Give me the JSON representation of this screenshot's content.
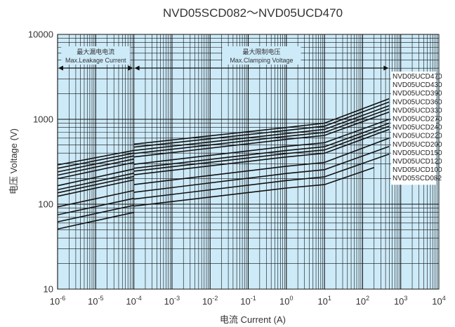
{
  "chart_data": {
    "type": "line",
    "title": "NVD05SCD082～NVD05UCD470",
    "xlabel": "电流 Current (A)",
    "ylabel": "电压 Voltage (V)",
    "x_scale": "log",
    "y_scale": "log",
    "xlim": [
      1e-06,
      10000
    ],
    "ylim": [
      10,
      10000
    ],
    "grid": true,
    "x_ticks": [
      {
        "base": "10",
        "exp": "-6"
      },
      {
        "base": "10",
        "exp": "-5"
      },
      {
        "base": "10",
        "exp": "-4"
      },
      {
        "base": "10",
        "exp": "-3"
      },
      {
        "base": "10",
        "exp": "-2"
      },
      {
        "base": "10",
        "exp": "-1"
      },
      {
        "base": "10",
        "exp": "0"
      },
      {
        "base": "10",
        "exp": "1"
      },
      {
        "base": "10",
        "exp": "2"
      },
      {
        "base": "10",
        "exp": "3"
      },
      {
        "base": "10",
        "exp": "4"
      }
    ],
    "y_ticks": [
      "10",
      "100",
      "1000",
      "10000"
    ],
    "regions": [
      {
        "label_cn": "最大漏电电流",
        "label_en": "Max.Leakage Current",
        "x_range": [
          1e-06,
          0.0001
        ]
      },
      {
        "label_cn": "最大限制电压",
        "label_en": "Max.Clamping Voltage",
        "x_range": [
          0.0001,
          500
        ]
      }
    ],
    "legend_position": "right",
    "series": [
      {
        "name": "NVD05UCD470",
        "leak": [
          [
            1e-06,
            290
          ],
          [
            0.0001,
            430
          ]
        ],
        "clamp": [
          [
            0.0001,
            510
          ],
          [
            1,
            800
          ],
          [
            10,
            900
          ],
          [
            500,
            1750
          ]
        ]
      },
      {
        "name": "NVD05UCD430",
        "leak": [
          [
            1e-06,
            265
          ],
          [
            0.0001,
            400
          ]
        ],
        "clamp": [
          [
            0.0001,
            470
          ],
          [
            1,
            740
          ],
          [
            10,
            830
          ],
          [
            500,
            1600
          ]
        ]
      },
      {
        "name": "NVD05UCD390",
        "leak": [
          [
            1e-06,
            240
          ],
          [
            0.0001,
            370
          ]
        ],
        "clamp": [
          [
            0.0001,
            430
          ],
          [
            1,
            680
          ],
          [
            10,
            760
          ],
          [
            500,
            1450
          ]
        ]
      },
      {
        "name": "NVD05UCD360",
        "leak": [
          [
            1e-06,
            220
          ],
          [
            0.0001,
            340
          ]
        ],
        "clamp": [
          [
            0.0001,
            395
          ],
          [
            1,
            630
          ],
          [
            10,
            700
          ],
          [
            500,
            1330
          ]
        ]
      },
      {
        "name": "NVD05UCD330",
        "leak": [
          [
            1e-06,
            200
          ],
          [
            0.0001,
            310
          ]
        ],
        "clamp": [
          [
            0.0001,
            360
          ],
          [
            1,
            580
          ],
          [
            10,
            645
          ],
          [
            500,
            1220
          ]
        ]
      },
      {
        "name": "NVD05UCD270",
        "leak": [
          [
            1e-06,
            165
          ],
          [
            0.0001,
            260
          ]
        ],
        "clamp": [
          [
            0.0001,
            295
          ],
          [
            1,
            480
          ],
          [
            10,
            530
          ],
          [
            500,
            1000
          ]
        ]
      },
      {
        "name": "NVD05UCD240",
        "leak": [
          [
            1e-06,
            148
          ],
          [
            0.0001,
            232
          ]
        ],
        "clamp": [
          [
            0.0001,
            265
          ],
          [
            1,
            430
          ],
          [
            10,
            475
          ],
          [
            500,
            900
          ]
        ]
      },
      {
        "name": "NVD05UCD220",
        "leak": [
          [
            1e-06,
            136
          ],
          [
            0.0001,
            212
          ]
        ],
        "clamp": [
          [
            0.0001,
            245
          ],
          [
            1,
            395
          ],
          [
            10,
            435
          ],
          [
            500,
            830
          ]
        ]
      },
      {
        "name": "NVD05UCD200",
        "leak": [
          [
            1e-06,
            124
          ],
          [
            0.0001,
            193
          ]
        ],
        "clamp": [
          [
            0.0001,
            222
          ],
          [
            1,
            360
          ],
          [
            10,
            398
          ],
          [
            500,
            760
          ]
        ]
      },
      {
        "name": "NVD05UCD150",
        "leak": [
          [
            1e-06,
            93
          ],
          [
            0.0001,
            145
          ]
        ],
        "clamp": [
          [
            0.0001,
            170
          ],
          [
            1,
            280
          ],
          [
            10,
            310
          ],
          [
            500,
            600
          ]
        ]
      },
      {
        "name": "NVD05UCD120",
        "leak": [
          [
            1e-06,
            75
          ],
          [
            0.0001,
            117
          ]
        ],
        "clamp": [
          [
            0.0001,
            138
          ],
          [
            1,
            230
          ],
          [
            10,
            255
          ],
          [
            500,
            480
          ]
        ]
      },
      {
        "name": "NVD05UCD100",
        "leak": [
          [
            1e-06,
            62
          ],
          [
            0.0001,
            97
          ]
        ],
        "clamp": [
          [
            0.0001,
            115
          ],
          [
            1,
            190
          ],
          [
            10,
            210
          ],
          [
            500,
            390
          ]
        ]
      },
      {
        "name": "NVD05SCD082",
        "leak": [
          [
            1e-06,
            51
          ],
          [
            0.0001,
            80
          ]
        ],
        "clamp": [
          [
            0.0001,
            95
          ],
          [
            1,
            155
          ],
          [
            10,
            170
          ],
          [
            200,
            270
          ]
        ]
      }
    ],
    "colors": {
      "plot_bg": "#cdeaf8",
      "grid": "#111111",
      "curve": "#111111"
    }
  }
}
